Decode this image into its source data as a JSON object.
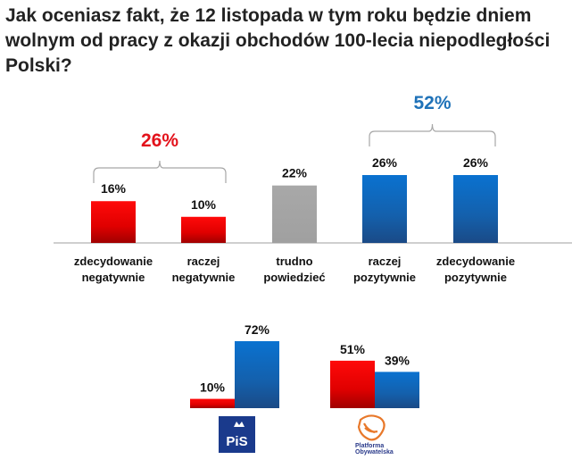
{
  "title": "Jak oceniasz fakt, że 12 listopada w tym roku będzie dniem wolnym od pracy z okazji obchodów 100-lecia niepodległości Polski?",
  "chart_data": [
    {
      "type": "bar",
      "categories": [
        [
          "zdecydowanie",
          "negatywnie"
        ],
        [
          "raczej",
          "negatywnie"
        ],
        [
          "trudno",
          "powiedzieć"
        ],
        [
          "raczej",
          "pozytywnie"
        ],
        [
          "zdecydowanie",
          "pozytywnie"
        ]
      ],
      "values": [
        16,
        10,
        22,
        26,
        26
      ],
      "value_labels": [
        "16%",
        "10%",
        "22%",
        "26%",
        "26%"
      ],
      "bar_colors": [
        "#e00000",
        "#e00000",
        "#a6a6a6",
        "#1464b4",
        "#1464b4"
      ],
      "groups": [
        {
          "label": "26%",
          "color": "#e3121b",
          "covers": [
            0,
            1
          ]
        },
        {
          "label": "52%",
          "color": "#1f72b8",
          "covers": [
            3,
            4
          ]
        }
      ],
      "ylim": [
        0,
        30
      ],
      "grid": false
    },
    {
      "type": "bar",
      "categories": [
        "PiS",
        "Platforma Obywatelska"
      ],
      "series": [
        {
          "values": [
            10,
            51
          ],
          "labels": [
            "10%",
            "51%"
          ],
          "color": "#e00000"
        },
        {
          "values": [
            72,
            39
          ],
          "labels": [
            "72%",
            "39%"
          ],
          "color": "#1464b4"
        }
      ],
      "category_logos": [
        {
          "text": "PiS",
          "color": "#1a3a8c"
        },
        {
          "text": "Platforma Obywatelska",
          "color": "#e8782a"
        }
      ],
      "ylim": [
        0,
        75
      ],
      "grid": false
    }
  ]
}
